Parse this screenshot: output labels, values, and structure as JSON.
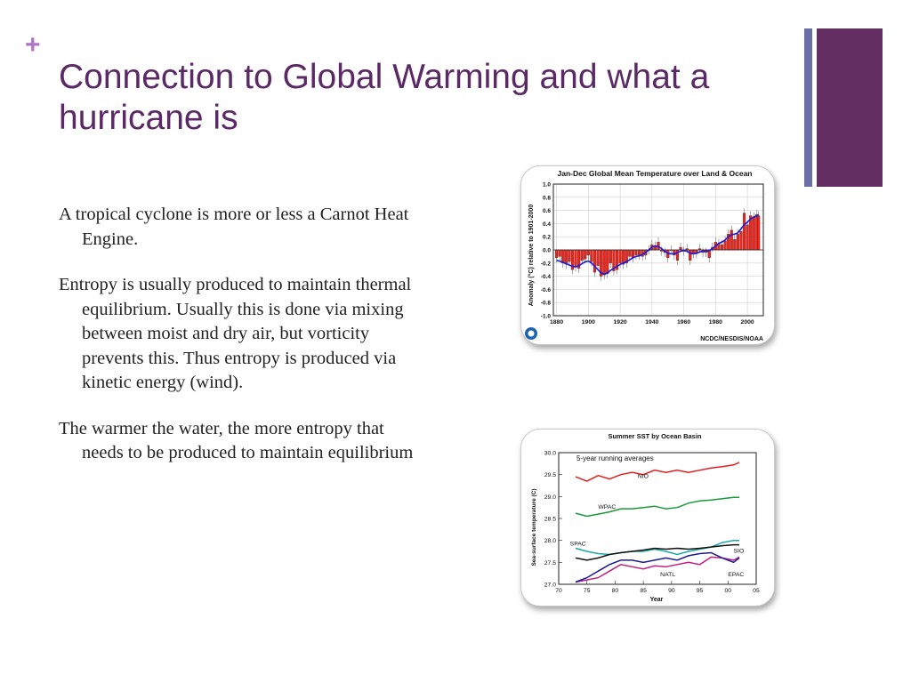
{
  "slide": {
    "bullet_glyph": "+",
    "title": "Connection to Global Warming and what a hurricane is",
    "paragraphs": [
      "A tropical cyclone is more or less a Carnot Heat Engine.",
      "Entropy is usually produced to maintain thermal equilibrium. Usually this is done via mixing between moist and dry air, but vorticity prevents this. Thus entropy is produced via kinetic energy (wind).",
      "The warmer the water, the more entropy that needs to be produced to maintain equilibrium"
    ],
    "colors": {
      "title": "#5b2a66",
      "plus": "#b074c4",
      "accent_block": "#632f62",
      "accent_stripe": "#6b6fa8"
    }
  },
  "chart_data": [
    {
      "type": "bar",
      "title": "Jan-Dec Global Mean Temperature over Land & Ocean",
      "ylabel": "Anomaly (°C) relative to 1901-2000",
      "xlabel": "",
      "credit": "NCDC/NESDIS/NOAA",
      "x_ticks": [
        "1880",
        "1900",
        "1920",
        "1940",
        "1960",
        "1980",
        "2000"
      ],
      "y_ticks": [
        "1.0",
        "0.8",
        "0.6",
        "0.4",
        "0.2",
        "0.0",
        "-0.2",
        "-0.4",
        "-0.6",
        "-0.8",
        "-1.0"
      ],
      "xlim": [
        1878,
        2010
      ],
      "ylim": [
        -1.0,
        1.0
      ],
      "grid": true,
      "bar_color": "#e8281e",
      "smooth_color": "#1a1ae0",
      "x": [
        1880,
        1882,
        1884,
        1886,
        1888,
        1890,
        1892,
        1894,
        1896,
        1898,
        1900,
        1902,
        1904,
        1906,
        1908,
        1910,
        1912,
        1914,
        1916,
        1918,
        1920,
        1922,
        1924,
        1926,
        1928,
        1930,
        1932,
        1934,
        1936,
        1938,
        1940,
        1942,
        1944,
        1946,
        1948,
        1950,
        1952,
        1954,
        1956,
        1958,
        1960,
        1962,
        1964,
        1966,
        1968,
        1970,
        1972,
        1974,
        1976,
        1978,
        1980,
        1982,
        1984,
        1986,
        1988,
        1990,
        1992,
        1994,
        1996,
        1998,
        2000,
        2002,
        2004,
        2006,
        2007
      ],
      "values": [
        -0.12,
        -0.1,
        -0.2,
        -0.22,
        -0.18,
        -0.3,
        -0.26,
        -0.28,
        -0.16,
        -0.14,
        -0.08,
        -0.18,
        -0.34,
        -0.24,
        -0.4,
        -0.38,
        -0.36,
        -0.2,
        -0.32,
        -0.3,
        -0.2,
        -0.22,
        -0.2,
        -0.1,
        -0.12,
        -0.08,
        -0.08,
        -0.1,
        -0.08,
        0.0,
        0.08,
        0.06,
        0.12,
        -0.02,
        -0.04,
        -0.12,
        0.0,
        -0.08,
        -0.16,
        0.04,
        -0.02,
        0.02,
        -0.16,
        -0.06,
        -0.06,
        0.02,
        -0.04,
        -0.04,
        -0.12,
        0.04,
        0.12,
        0.1,
        0.08,
        0.14,
        0.24,
        0.3,
        0.16,
        0.24,
        0.28,
        0.56,
        0.38,
        0.52,
        0.5,
        0.54,
        0.52
      ],
      "smoothed": [
        -0.16,
        -0.17,
        -0.19,
        -0.21,
        -0.23,
        -0.25,
        -0.26,
        -0.24,
        -0.21,
        -0.18,
        -0.17,
        -0.2,
        -0.25,
        -0.3,
        -0.35,
        -0.37,
        -0.35,
        -0.31,
        -0.28,
        -0.25,
        -0.22,
        -0.2,
        -0.18,
        -0.15,
        -0.12,
        -0.1,
        -0.09,
        -0.07,
        -0.04,
        0.0,
        0.04,
        0.06,
        0.05,
        0.02,
        -0.02,
        -0.05,
        -0.06,
        -0.06,
        -0.04,
        -0.02,
        -0.01,
        -0.02,
        -0.05,
        -0.06,
        -0.05,
        -0.03,
        -0.02,
        -0.02,
        -0.01,
        0.02,
        0.06,
        0.1,
        0.12,
        0.15,
        0.2,
        0.23,
        0.24,
        0.26,
        0.32,
        0.38,
        0.42,
        0.47,
        0.5,
        0.52,
        0.53
      ]
    },
    {
      "type": "line",
      "title": "Summer SST by Ocean Basin",
      "subtitle": "5-year running averages",
      "xlabel": "Year",
      "ylabel": "Sea-surface temperature (C)",
      "x_ticks": [
        "70",
        "75",
        "80",
        "85",
        "90",
        "95",
        "00",
        "05"
      ],
      "y_ticks": [
        "30.0",
        "29.5",
        "29.0",
        "28.5",
        "28.0",
        "27.5",
        "27.0"
      ],
      "xlim": [
        1970,
        2005
      ],
      "ylim": [
        27.0,
        30.0
      ],
      "x": [
        1973,
        1975,
        1977,
        1979,
        1981,
        1983,
        1985,
        1987,
        1989,
        1991,
        1993,
        1995,
        1997,
        1999,
        2001,
        2002
      ],
      "series": [
        {
          "name": "NIO",
          "color": "#e02020",
          "values": [
            29.45,
            29.35,
            29.48,
            29.4,
            29.5,
            29.55,
            29.5,
            29.6,
            29.55,
            29.6,
            29.55,
            29.6,
            29.65,
            29.68,
            29.72,
            29.78
          ]
        },
        {
          "name": "WPAC",
          "color": "#1a9a3a",
          "values": [
            28.62,
            28.55,
            28.6,
            28.65,
            28.72,
            28.72,
            28.75,
            28.78,
            28.72,
            28.75,
            28.85,
            28.9,
            28.92,
            28.95,
            28.98,
            28.98
          ]
        },
        {
          "name": "SPAC",
          "color": "#1aa8a8",
          "values": [
            27.82,
            27.75,
            27.7,
            27.68,
            27.72,
            27.75,
            27.75,
            27.8,
            27.75,
            27.68,
            27.75,
            27.8,
            27.85,
            27.95,
            28.0,
            28.0
          ]
        },
        {
          "name": "SIO",
          "color": "#111111",
          "values": [
            27.6,
            27.55,
            27.6,
            27.68,
            27.72,
            27.75,
            27.78,
            27.82,
            27.8,
            27.82,
            27.8,
            27.82,
            27.85,
            27.88,
            27.9,
            27.9
          ]
        },
        {
          "name": "NATL",
          "color": "#c02080",
          "values": [
            27.05,
            27.1,
            27.15,
            27.3,
            27.45,
            27.4,
            27.35,
            27.42,
            27.4,
            27.45,
            27.5,
            27.45,
            27.62,
            27.6,
            27.55,
            27.62
          ]
        },
        {
          "name": "EPAC",
          "color": "#1a1a9a",
          "values": [
            27.05,
            27.15,
            27.3,
            27.45,
            27.55,
            27.55,
            27.5,
            27.55,
            27.6,
            27.55,
            27.65,
            27.7,
            27.72,
            27.6,
            27.5,
            27.6
          ]
        }
      ]
    }
  ]
}
